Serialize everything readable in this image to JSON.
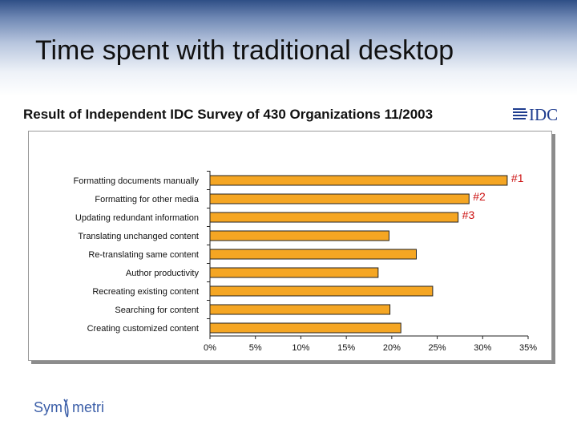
{
  "slide": {
    "title": "Time spent with traditional desktop",
    "subtitle": "Result of Independent IDC Survey of 430 Organizations 11/2003",
    "logo_text": "IDC",
    "brand_text_1": "Sym",
    "brand_text_2": "metri"
  },
  "colors": {
    "bar_fill": "#f5a623",
    "bar_edge": "#222222",
    "rank_label": "#cc1111",
    "logo_blue": "#1f3d8f",
    "brand_blue": "#3b5ea8"
  },
  "chart_data": {
    "type": "bar",
    "orientation": "horizontal",
    "categories": [
      "Formatting documents manually",
      "Formatting for other media",
      "Updating redundant information",
      "Translating unchanged content",
      "Re-translating same content",
      "Author productivity",
      "Recreating existing content",
      "Searching for content",
      "Creating customized content"
    ],
    "values": [
      32.7,
      28.5,
      27.3,
      19.7,
      22.7,
      18.5,
      24.5,
      19.8,
      21.0
    ],
    "annotations": [
      "#1",
      "#2",
      "#3",
      "",
      "",
      "",
      "",
      "",
      ""
    ],
    "xlim": [
      0,
      35
    ],
    "xticks": [
      0,
      5,
      10,
      15,
      20,
      25,
      30,
      35
    ],
    "xtick_labels": [
      "0%",
      "5%",
      "10%",
      "15%",
      "20%",
      "25%",
      "30%",
      "35%"
    ],
    "title": "",
    "xlabel": "",
    "ylabel": "",
    "grid": false,
    "legend": "none"
  }
}
